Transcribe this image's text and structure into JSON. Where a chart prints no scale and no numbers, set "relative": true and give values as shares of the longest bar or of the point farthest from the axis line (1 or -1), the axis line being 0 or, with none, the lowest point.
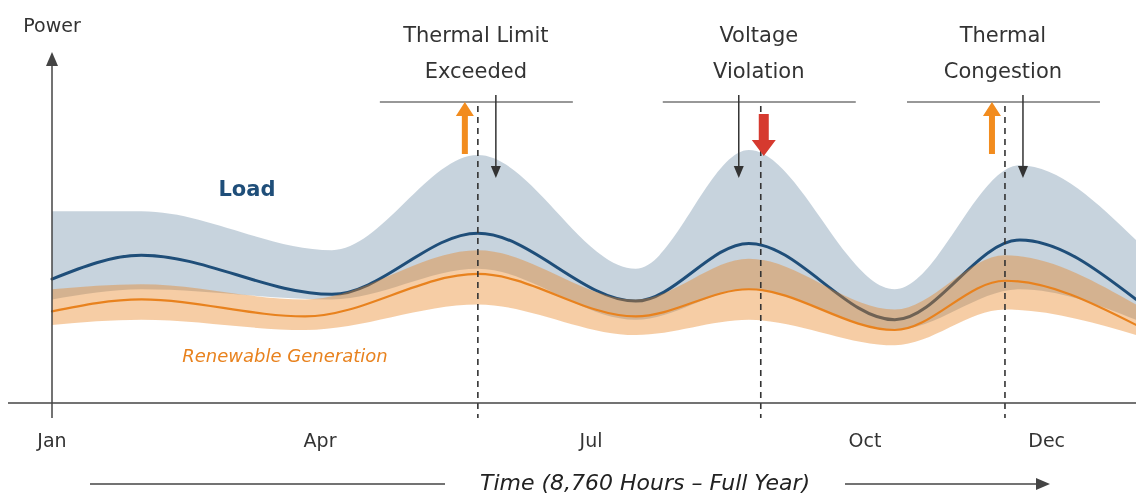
{
  "chart_data": {
    "type": "line",
    "relative": true,
    "annotations": [
      "Power"
    ],
    "xlabel": "Time (8,760 Hours – Full Year)",
    "legend": false,
    "grid": false,
    "tick_labels": "x",
    "xlim": [
      "--01-01",
      "--12-31"
    ],
    "xticks": [
      {
        "value": "--01-01",
        "label": "Jan"
      },
      {
        "value": "--04-01",
        "label": "Apr"
      },
      {
        "value": "--07-01",
        "label": "Jul"
      },
      {
        "value": "--10-01",
        "label": "Oct"
      },
      {
        "value": "--12-01",
        "label": "Dec"
      }
    ],
    "series": [
      {
        "name": "Load",
        "color": "#1f4e79",
        "x": [
          "--01-01",
          "--01-31",
          "--04-05",
          "--05-24",
          "--07-16",
          "--08-23",
          "--10-11",
          "--11-22",
          "--12-31"
        ],
        "values": [
          0.73,
          0.87,
          0.64,
          1,
          0.6,
          0.94,
          0.49,
          0.96,
          0.61
        ],
        "lower": [
          0.61,
          0.67,
          0.61,
          0.79,
          0.49,
          0.67,
          0.43,
          0.67,
          0.49
        ],
        "upper": [
          1.13,
          1.13,
          0.9,
          1.46,
          0.79,
          1.49,
          0.67,
          1.4,
          0.96
        ]
      },
      {
        "name": "Renewable Generation",
        "color": "#e8821e",
        "x": [
          "--01-01",
          "--01-31",
          "--03-27",
          "--05-24",
          "--07-16",
          "--08-23",
          "--10-11",
          "--11-17",
          "--12-31"
        ],
        "values": [
          0.54,
          0.61,
          0.51,
          0.76,
          0.51,
          0.67,
          0.43,
          0.72,
          0.46
        ],
        "lower": [
          0.46,
          0.49,
          0.43,
          0.58,
          0.4,
          0.49,
          0.34,
          0.55,
          0.4
        ],
        "upper": [
          0.67,
          0.7,
          0.61,
          0.9,
          0.61,
          0.85,
          0.55,
          0.87,
          0.58
        ]
      }
    ],
    "ref_lines": [
      {
        "axis": "x",
        "value": "--05-24",
        "label": "Thermal Limit Exceeded",
        "color": "#333333",
        "line_style": "dashed"
      },
      {
        "axis": "x",
        "value": "--08-27",
        "label": "Voltage Violation",
        "color": "#333333",
        "line_style": "dashed"
      },
      {
        "axis": "x",
        "value": "--11-17",
        "label": "Thermal Congestion",
        "color": "#333333",
        "line_style": "dashed"
      }
    ]
  }
}
